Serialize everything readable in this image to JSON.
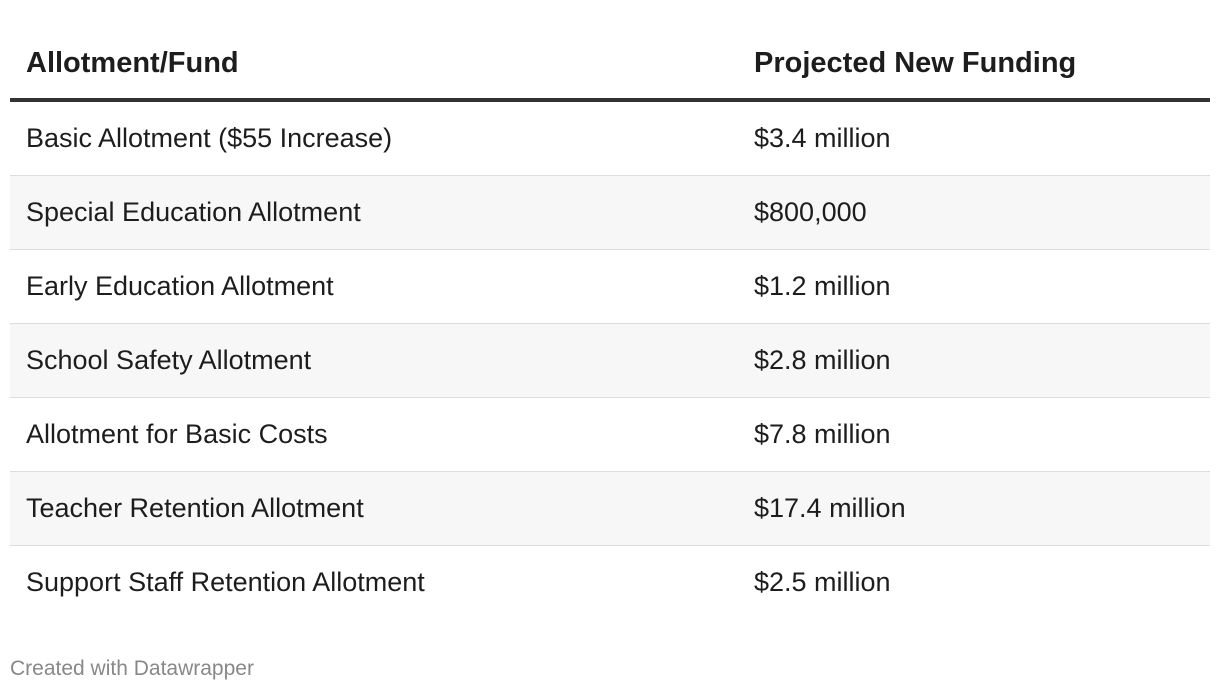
{
  "chart_data": {
    "type": "table",
    "columns": [
      "Allotment/Fund",
      "Projected New Funding"
    ],
    "rows": [
      [
        "Basic Allotment ($55 Increase)",
        "$3.4 million"
      ],
      [
        "Special Education Allotment",
        "$800,000"
      ],
      [
        "Early Education Allotment",
        "$1.2 million"
      ],
      [
        "School Safety Allotment",
        "$2.8 million"
      ],
      [
        "Allotment for Basic Costs",
        "$7.8 million"
      ],
      [
        "Teacher Retention Allotment",
        "$17.4 million"
      ],
      [
        "Support Staff Retention Allotment",
        "$2.5 million"
      ]
    ],
    "values_usd": [
      3400000,
      800000,
      1200000,
      2800000,
      7800000,
      17400000,
      2500000
    ]
  },
  "footer": {
    "credit": "Created with Datawrapper"
  }
}
